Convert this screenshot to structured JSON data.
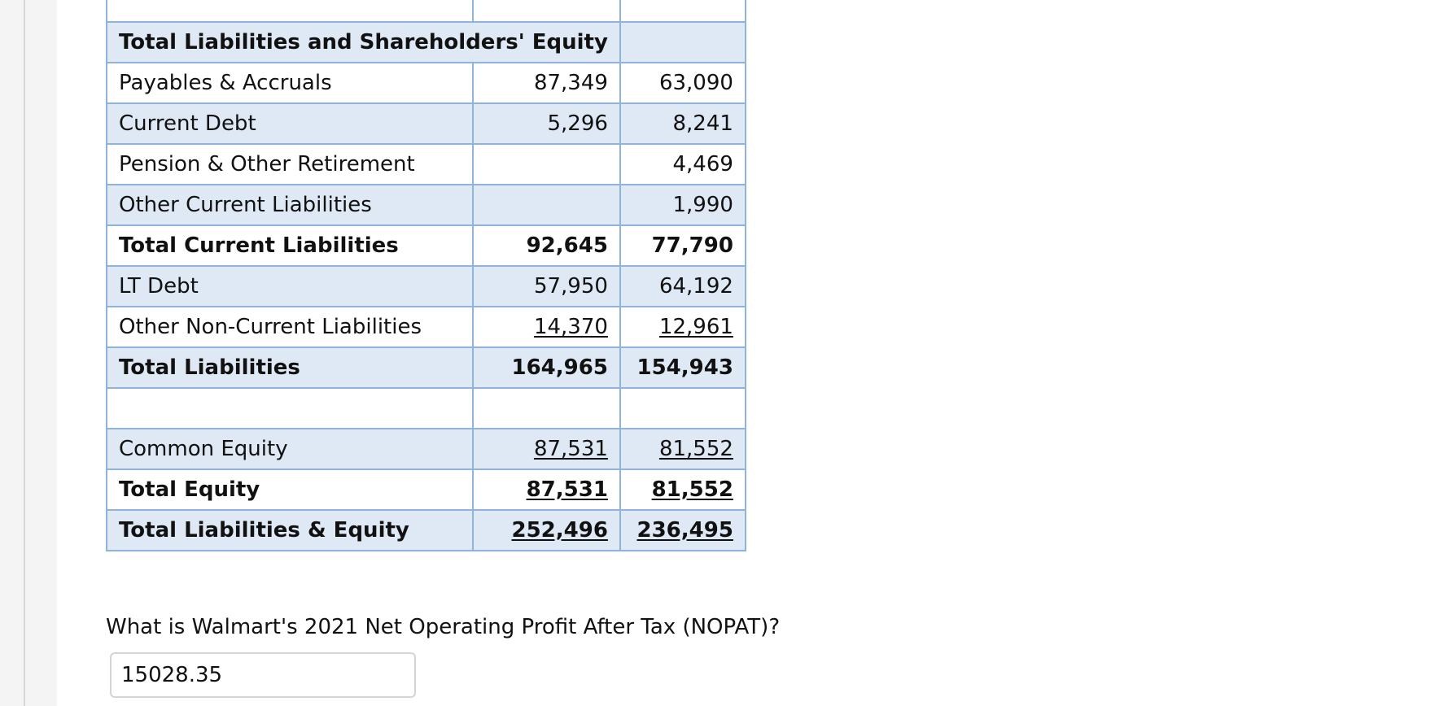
{
  "table": {
    "rows": [
      {
        "label": "",
        "c1": "",
        "c2": "",
        "style": "plain",
        "bold": false,
        "underline": false
      },
      {
        "label": "Total Liabilities and Shareholders' Equity",
        "style": "shaded",
        "bold": true,
        "header": true
      },
      {
        "label": "Payables & Accruals",
        "c1": "87,349",
        "c2": "63,090",
        "style": "plain",
        "bold": false,
        "underline": false
      },
      {
        "label": "Current Debt",
        "c1": "5,296",
        "c2": "8,241",
        "style": "shaded",
        "bold": false,
        "underline": false
      },
      {
        "label": "Pension & Other Retirement",
        "c1": "",
        "c2": "4,469",
        "style": "plain",
        "bold": false,
        "underline": false
      },
      {
        "label": "Other Current Liabilities",
        "c1": "",
        "c2": "1,990",
        "style": "shaded",
        "bold": false,
        "underline": false
      },
      {
        "label": "Total Current Liabilities",
        "c1": "92,645",
        "c2": "77,790",
        "style": "plain",
        "bold": true,
        "underline": false
      },
      {
        "label": "LT Debt",
        "c1": "57,950",
        "c2": "64,192",
        "style": "shaded",
        "bold": false,
        "underline": false
      },
      {
        "label": "Other Non-Current Liabilities",
        "c1": "14,370",
        "c2": "12,961",
        "style": "plain",
        "bold": false,
        "underline": true
      },
      {
        "label": "Total Liabilities",
        "c1": "164,965",
        "c2": "154,943",
        "style": "shaded",
        "bold": true,
        "underline": false
      },
      {
        "label": "",
        "c1": "",
        "c2": "",
        "style": "plain",
        "bold": false,
        "underline": false
      },
      {
        "label": "Common Equity",
        "c1": "87,531",
        "c2": "81,552",
        "style": "shaded",
        "bold": false,
        "underline": true
      },
      {
        "label": "Total Equity",
        "c1": "87,531",
        "c2": "81,552",
        "style": "plain",
        "bold": true,
        "underline": true
      },
      {
        "label": "Total Liabilities & Equity",
        "c1": "252,496",
        "c2": "236,495",
        "style": "shaded",
        "bold": true,
        "underline": true
      }
    ]
  },
  "question": {
    "text": "What is Walmart's 2021 Net Operating Profit After Tax (NOPAT)?",
    "answer_value": "15028.35"
  },
  "colors": {
    "border": "#8fb4dc",
    "shaded_row": "#dfe9f5",
    "left_rail": "#f4f4f4"
  }
}
